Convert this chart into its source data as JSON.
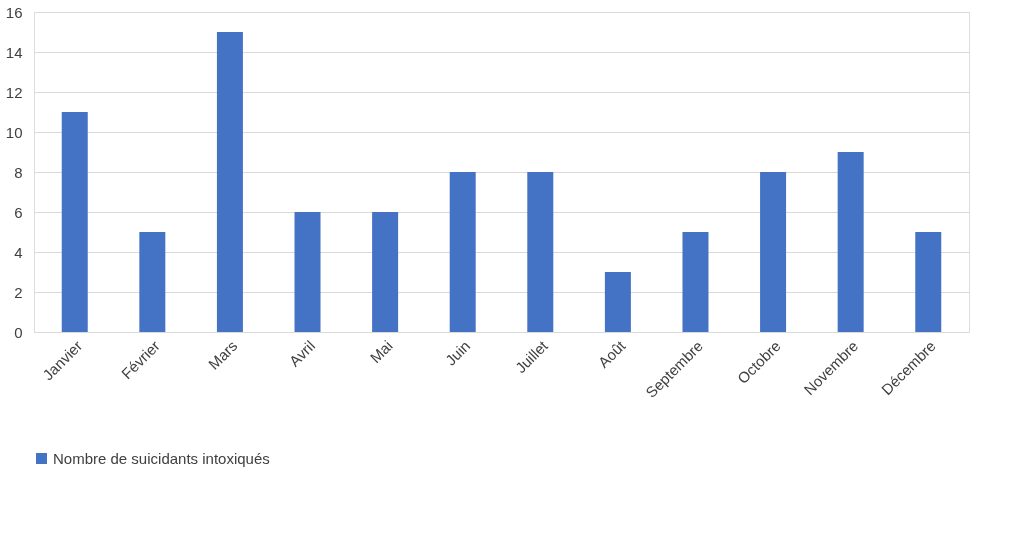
{
  "chart_data": {
    "type": "bar",
    "categories": [
      "Janvier",
      "Février",
      "Mars",
      "Avril",
      "Mai",
      "Juin",
      "Juillet",
      "Août",
      "Septembre",
      "Octobre",
      "Novembre",
      "Décembre"
    ],
    "series": [
      {
        "name": "Nombre de suicidants intoxiqués",
        "color": "#4472c4",
        "values": [
          11,
          5,
          15,
          6,
          6,
          8,
          8,
          3,
          5,
          8,
          9,
          5
        ]
      }
    ],
    "ylim": [
      0,
      16
    ],
    "yticks": [
      0,
      2,
      4,
      6,
      8,
      10,
      12,
      14,
      16
    ],
    "grid": "y",
    "legend": "bottom"
  }
}
